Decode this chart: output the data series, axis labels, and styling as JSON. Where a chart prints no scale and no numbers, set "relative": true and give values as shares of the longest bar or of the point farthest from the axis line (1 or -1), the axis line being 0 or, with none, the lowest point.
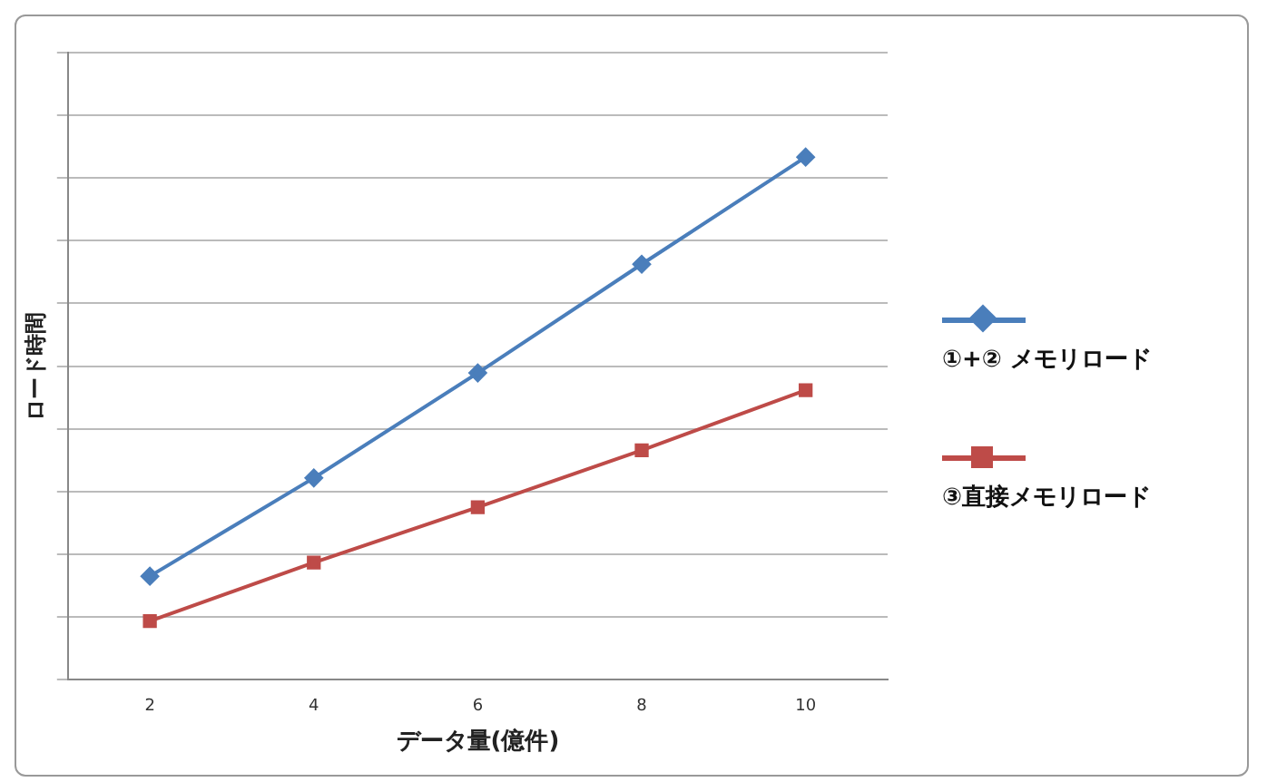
{
  "chart_data": {
    "type": "line",
    "xlabel": "データ量(億件)",
    "ylabel": "ロード時間",
    "categories": [
      "2",
      "4",
      "6",
      "8",
      "10"
    ],
    "relative": true,
    "grid": "y",
    "legend": "right",
    "series": [
      {
        "name": "①+② メモリロード",
        "color": "#4a7ebb",
        "marker": "diamond",
        "values": [
          0.198,
          0.386,
          0.587,
          0.795,
          1
        ]
      },
      {
        "name": "③直接メモリロード",
        "color": "#be4b48",
        "marker": "square",
        "values": [
          0.112,
          0.224,
          0.33,
          0.439,
          0.554
        ]
      }
    ]
  }
}
